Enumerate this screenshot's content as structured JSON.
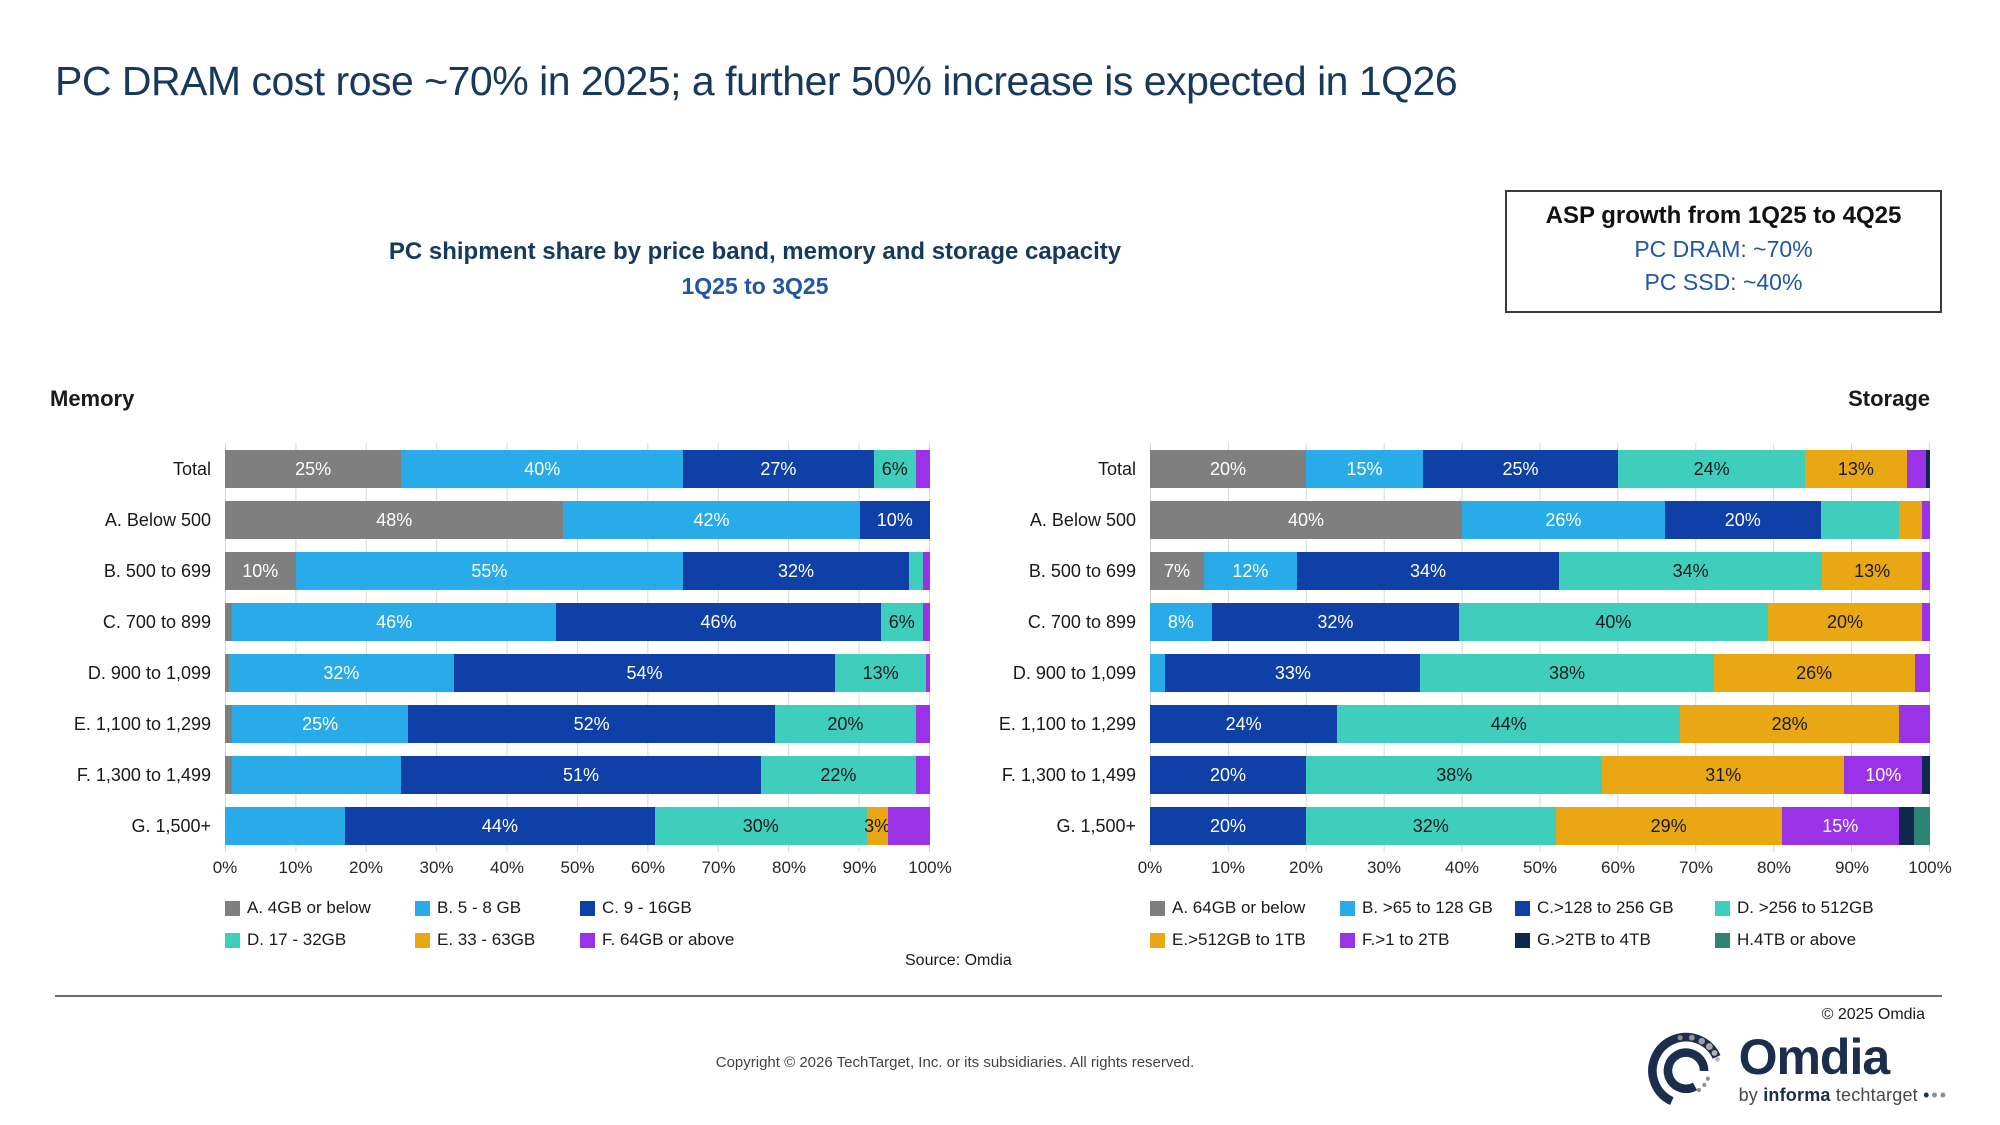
{
  "slide": {
    "title": "PC DRAM cost rose ~70% in 2025; a further 50% increase is expected in 1Q26",
    "subtitle_line1": "PC shipment share by price band, memory and storage capacity",
    "subtitle_line2": "1Q25 to 3Q25",
    "asp_box": {
      "title": "ASP growth from 1Q25 to 4Q25",
      "line1": "PC DRAM: ~70%",
      "line2": "PC SSD: ~40%"
    },
    "source": "Source: Omdia",
    "footer": {
      "copyright_small": "© 2025 Omdia",
      "copyright_main": "Copyright © 2026 TechTarget, Inc. or its subsidiaries. All rights reserved.",
      "logo_word": "Omdia",
      "logo_tag_by": "by",
      "logo_tag_brand": "informa",
      "logo_tag_rest": "techtarget"
    }
  },
  "colors": {
    "title_navy": "#17395E",
    "accent_blue": "#2156A6",
    "gray": "#7F7F7F",
    "light_blue": "#29ABE9",
    "dark_blue": "#0E40A8",
    "teal": "#3FCEBC",
    "gold": "#E9A713",
    "purple": "#9A33E8",
    "navy": "#0F2A4E",
    "sea_green": "#2E8374",
    "gridline": "#D9D9D9"
  },
  "chart_data": [
    {
      "type": "bar",
      "subtype": "horizontal-stacked",
      "title": "Memory",
      "xlabel": "",
      "ylabel": "",
      "xlim": [
        0,
        100
      ],
      "grid": "vertical 10% steps",
      "legend_position": "bottom",
      "xticks": [
        "0%",
        "10%",
        "20%",
        "30%",
        "40%",
        "50%",
        "60%",
        "70%",
        "80%",
        "90%",
        "100%"
      ],
      "categories": [
        "Total",
        "A. Below 500",
        "B. 500 to 699",
        "C. 700 to 899",
        "D. 900 to 1,099",
        "E. 1,100 to 1,299",
        "F. 1,300 to 1,499",
        "G. 1,500+"
      ],
      "series": [
        {
          "name": "A. 4GB or below",
          "color": "#7F7F7F",
          "text_color": "#FFFFFF",
          "values": [
            25,
            48,
            10,
            1,
            0.5,
            1,
            1,
            0
          ],
          "labels": [
            "25%",
            "48%",
            "10%",
            "",
            "",
            "",
            "",
            ""
          ]
        },
        {
          "name": "B. 5 - 8 GB",
          "color": "#29ABE9",
          "text_color": "#FFFFFF",
          "values": [
            40,
            42,
            55,
            46,
            32,
            25,
            24,
            17
          ],
          "labels": [
            "40%",
            "42%",
            "55%",
            "46%",
            "32%",
            "25%",
            "",
            ""
          ]
        },
        {
          "name": "C. 9 - 16GB",
          "color": "#0E40A8",
          "text_color": "#FFFFFF",
          "values": [
            27,
            10,
            32,
            46,
            54,
            52,
            51,
            44
          ],
          "labels": [
            "27%",
            "10%",
            "32%",
            "46%",
            "54%",
            "52%",
            "51%",
            "44%"
          ]
        },
        {
          "name": "D. 17 - 32GB",
          "color": "#3FCEBC",
          "text_color": "#1A1A1A",
          "values": [
            6,
            0,
            2,
            6,
            13,
            20,
            22,
            30
          ],
          "labels": [
            "6%",
            "",
            "",
            "6%",
            "13%",
            "20%",
            "22%",
            "30%"
          ]
        },
        {
          "name": "E. 33 - 63GB",
          "color": "#E9A713",
          "text_color": "#1A1A1A",
          "values": [
            0,
            0,
            0,
            0,
            0,
            0,
            0,
            3
          ],
          "labels": [
            "",
            "",
            "",
            "",
            "",
            "",
            "",
            "3%"
          ]
        },
        {
          "name": "F. 64GB or above",
          "color": "#9A33E8",
          "text_color": "#FFFFFF",
          "values": [
            2,
            0,
            1,
            1,
            0.5,
            2,
            2,
            6
          ],
          "labels": [
            "",
            "",
            "",
            "",
            "",
            "",
            "",
            ""
          ]
        }
      ]
    },
    {
      "type": "bar",
      "subtype": "horizontal-stacked",
      "title": "Storage",
      "xlabel": "",
      "ylabel": "",
      "xlim": [
        0,
        100
      ],
      "grid": "vertical 10% steps",
      "legend_position": "bottom",
      "xticks": [
        "0%",
        "10%",
        "20%",
        "30%",
        "40%",
        "50%",
        "60%",
        "70%",
        "80%",
        "90%",
        "100%"
      ],
      "categories": [
        "Total",
        "A. Below 500",
        "B. 500 to 699",
        "C. 700 to 899",
        "D. 900 to 1,099",
        "E. 1,100 to 1,299",
        "F. 1,300 to 1,499",
        "G. 1,500+"
      ],
      "series": [
        {
          "name": "A. 64GB or below",
          "color": "#7F7F7F",
          "text_color": "#FFFFFF",
          "values": [
            20,
            40,
            7,
            0,
            0,
            0,
            0,
            0
          ],
          "labels": [
            "20%",
            "40%",
            "7%",
            "",
            "",
            "",
            "",
            ""
          ]
        },
        {
          "name": "B. >65 to 128 GB",
          "color": "#29ABE9",
          "text_color": "#FFFFFF",
          "values": [
            15,
            26,
            12,
            8,
            2,
            0,
            0,
            0
          ],
          "labels": [
            "15%",
            "26%",
            "12%",
            "8%",
            "",
            "",
            "",
            ""
          ]
        },
        {
          "name": "C.>128 to 256 GB",
          "color": "#0E40A8",
          "text_color": "#FFFFFF",
          "values": [
            25,
            20,
            34,
            32,
            33,
            24,
            20,
            20
          ],
          "labels": [
            "25%",
            "20%",
            "34%",
            "32%",
            "33%",
            "24%",
            "20%",
            "20%"
          ]
        },
        {
          "name": "D. >256 to 512GB",
          "color": "#3FCEBC",
          "text_color": "#1A1A1A",
          "values": [
            24,
            10,
            34,
            40,
            38,
            44,
            38,
            32
          ],
          "labels": [
            "24%",
            "",
            "34%",
            "40%",
            "38%",
            "44%",
            "38%",
            "32%"
          ]
        },
        {
          "name": "E.>512GB to 1TB",
          "color": "#E9A713",
          "text_color": "#1A1A1A",
          "values": [
            13,
            3,
            13,
            20,
            26,
            28,
            31,
            29
          ],
          "labels": [
            "13%",
            "",
            "13%",
            "20%",
            "26%",
            "28%",
            "31%",
            "29%"
          ]
        },
        {
          "name": "F.>1 to 2TB",
          "color": "#9A33E8",
          "text_color": "#FFFFFF",
          "values": [
            2.5,
            1,
            1,
            1,
            2,
            4,
            10,
            15
          ],
          "labels": [
            "",
            "",
            "",
            "",
            "",
            "",
            "10%",
            "15%"
          ]
        },
        {
          "name": "G.>2TB to 4TB",
          "color": "#0F2A4E",
          "text_color": "#FFFFFF",
          "values": [
            0.5,
            0,
            0,
            0,
            0,
            0,
            1,
            2
          ],
          "labels": [
            "",
            "",
            "",
            "",
            "",
            "",
            "",
            ""
          ]
        },
        {
          "name": "H.4TB or above",
          "color": "#2E8374",
          "text_color": "#FFFFFF",
          "values": [
            0,
            0,
            0,
            0,
            0,
            0,
            0,
            2
          ],
          "labels": [
            "",
            "",
            "",
            "",
            "",
            "",
            "",
            ""
          ]
        }
      ]
    }
  ]
}
